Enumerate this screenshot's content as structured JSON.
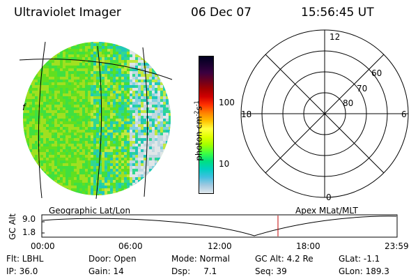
{
  "header": {
    "title": "Ultraviolet Imager",
    "date": "06 Dec 07",
    "time": "15:56:45 UT"
  },
  "colorbar": {
    "label": "photon cm⁻²s⁻¹",
    "label_parts": {
      "main": "photon cm",
      "exp1": "-2",
      "mid": "s",
      "exp2": "-1"
    },
    "ticks": [
      "100",
      "10"
    ],
    "colors": [
      "#000020",
      "#1a0030",
      "#3a0040",
      "#6a0020",
      "#a00000",
      "#d00000",
      "#ff3000",
      "#ff8000",
      "#ffc000",
      "#ffff40",
      "#e0ff00",
      "#a0ff00",
      "#40ff40",
      "#00e080",
      "#00d0c0",
      "#40c0e0",
      "#a0c8e0",
      "#e0e8ec"
    ]
  },
  "image_panel": {
    "label": "Geographic Lat/Lon",
    "noise_colors": [
      "#40e040",
      "#60e020",
      "#a0e020",
      "#c0e840",
      "#30d890",
      "#20c8b8",
      "#80d0e0",
      "#c0d8e0",
      "#e0e6e8"
    ]
  },
  "polar_plot": {
    "label": "Apex MLat/MLT",
    "mlt_labels": {
      "top": "12",
      "left": "18",
      "right": "6",
      "bottom": "0"
    },
    "lat_labels": [
      "60",
      "70",
      "80"
    ]
  },
  "altitude_plot": {
    "ylabel": "GC Alt",
    "yticks": [
      "9.0",
      "1.8"
    ],
    "xticks": [
      "00:00",
      "06:00",
      "12:00",
      "18:00",
      "23:59"
    ],
    "marker_color": "#c00000"
  },
  "info": {
    "filter": "Flt: LBHL",
    "door": "Door: Open",
    "mode": "Mode: Normal",
    "gc_alt": "GC Alt: 4.2 Re",
    "glat": "GLat:  -1.1",
    "ip": "IP: 36.0",
    "gain": "Gain: 14",
    "dsp": "Dsp:     7.1",
    "seq": "Seq: 39",
    "glon": "GLon: 189.3"
  }
}
